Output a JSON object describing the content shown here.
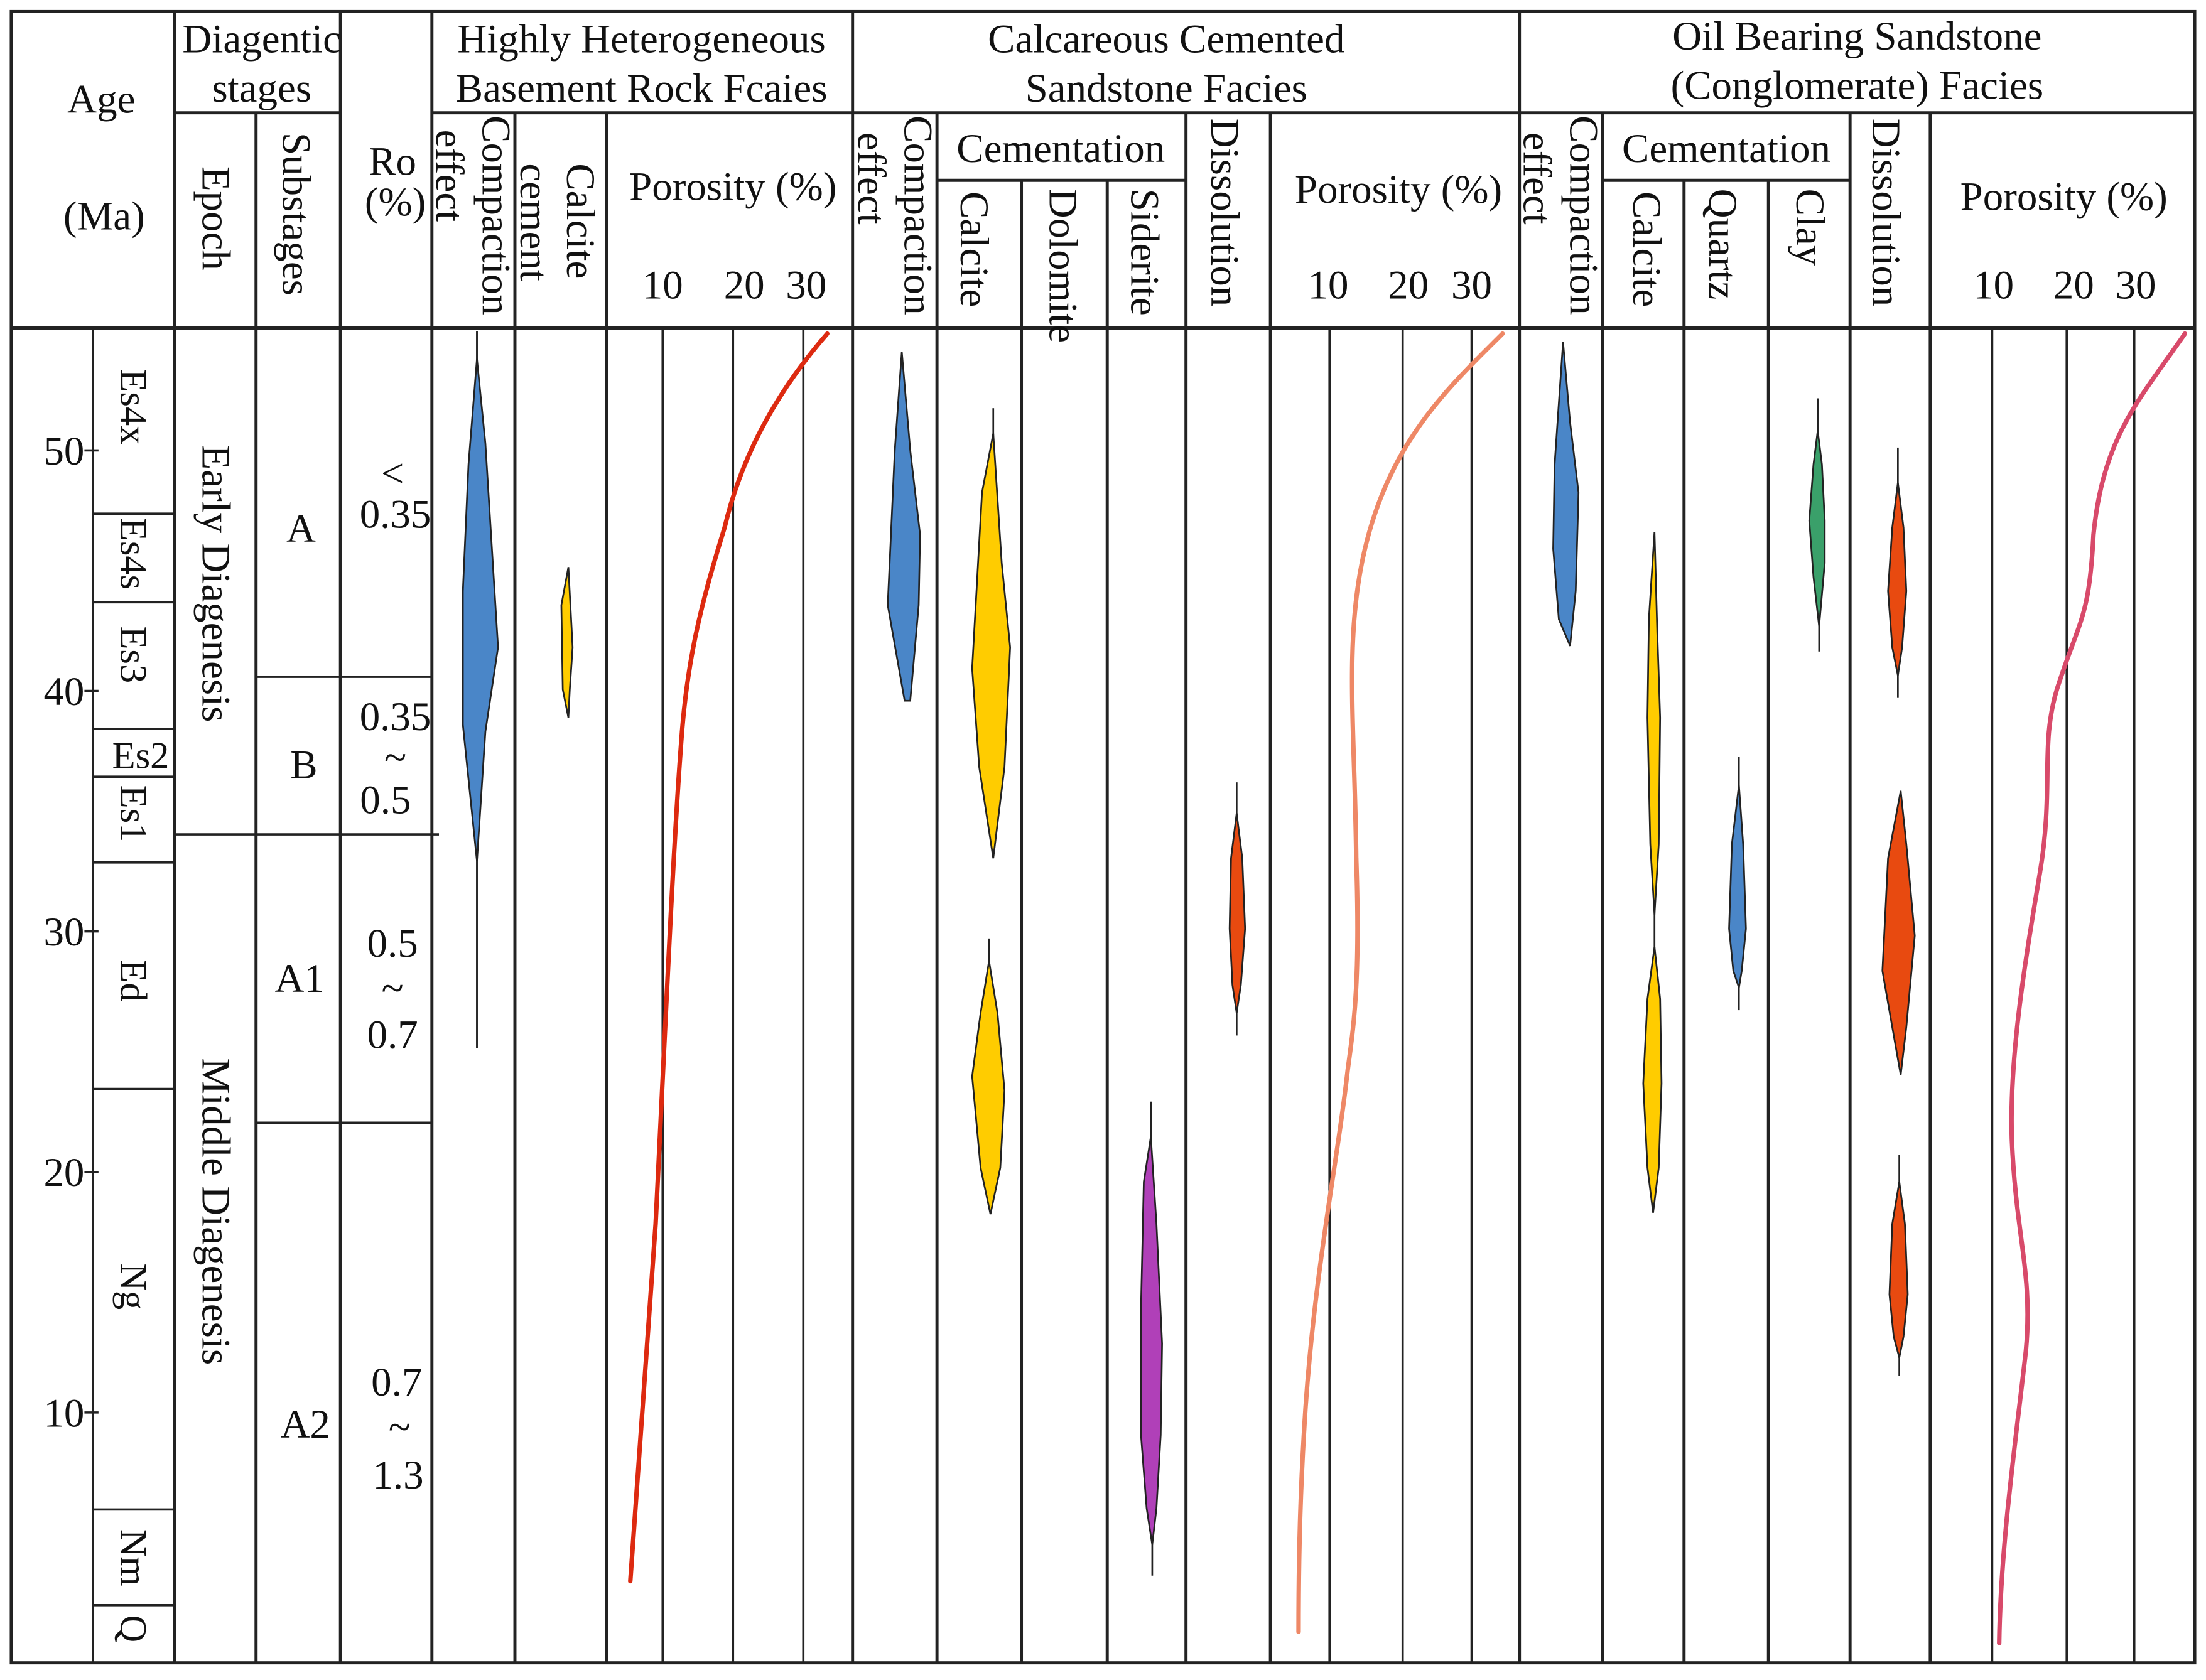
{
  "headers": {
    "age_line1": "Age",
    "age_line2": "(Ma)",
    "diag_stages_line1": "Diagentic",
    "diag_stages_line2": "stages",
    "epoch": "Epoch",
    "substages": "Substages",
    "ro_line1": "Ro",
    "ro_line2": "(%)",
    "facies1_line1": "Highly Heterogeneous",
    "facies1_line2": "Basement Rock Fcaies",
    "facies2_line1": "Calcareous Cemented",
    "facies2_line2": "Sandstone Facies",
    "facies3_line1": "Oil Bearing Sandstone",
    "facies3_line2": "(Conglomerate) Facies",
    "compaction_line1": "Compaction",
    "compaction_line2": "effect",
    "calcite_cement_line1": "Calcite",
    "calcite_cement_line2": "cement",
    "cementation": "Cementation",
    "calcite": "Calcite",
    "dolomite": "Dolomite",
    "siderite": "Siderite",
    "quartz": "Quartz",
    "clay": "Clay",
    "dissolution": "Dissolution",
    "porosity": "Porosity (%)",
    "por_tick_10": "10",
    "por_tick_20": "20",
    "por_tick_30": "30"
  },
  "age_ticks": [
    "50",
    "40",
    "30",
    "20",
    "10"
  ],
  "formations": [
    "Es4x",
    "Es4s",
    "Es3",
    "Es2",
    "Es1",
    "Ed",
    "Ng",
    "Nm",
    "Q"
  ],
  "epochs": [
    "Early Diagenesis",
    "Middle Diagenesis"
  ],
  "substages": [
    "A",
    "B",
    "A1",
    "A2"
  ],
  "ro_values": {
    "a_line1": "<",
    "a_line2": "0.35",
    "b_line1": "0.35",
    "b_line2": "~",
    "b_line3": "0.5",
    "a1_line1": "0.5",
    "a1_line2": "~",
    "a1_line3": "0.7",
    "a2_line1": "0.7",
    "a2_line2": "~",
    "a2_line3": "1.3"
  },
  "colors": {
    "compaction": "#4a86c8",
    "calcite": "#ffcc00",
    "siderite": "#b040b8",
    "dissolution": "#e84a10",
    "quartz": "#4a86c8",
    "clay": "#3aa06a",
    "porosity_basement": "#dd2a10",
    "porosity_calcareous": "#ee8866",
    "porosity_oil": "#d84a6a"
  }
}
